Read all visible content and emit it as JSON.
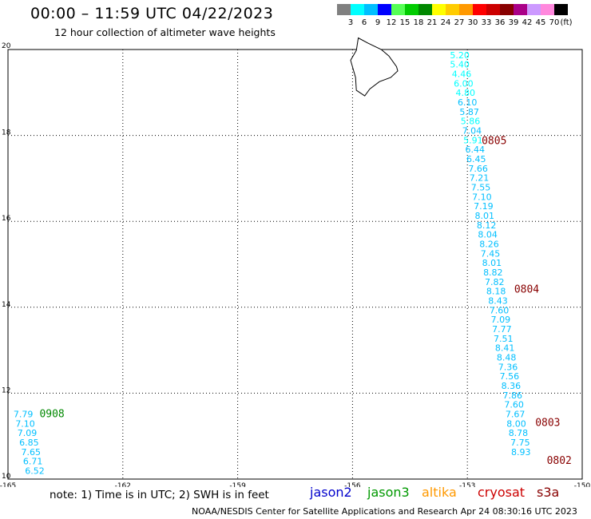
{
  "header": {
    "title": "00:00 – 11:59 UTC 04/22/2023",
    "subtitle": "12 hour collection of altimeter wave heights"
  },
  "colorbar": {
    "colors": [
      "#808080",
      "#00ffff",
      "#00bfff",
      "#0000ff",
      "#55ff55",
      "#00cc00",
      "#008800",
      "#ffff00",
      "#ffcc00",
      "#ff9900",
      "#ff0000",
      "#cc0000",
      "#880000",
      "#aa0088",
      "#cc99ff",
      "#ff88dd",
      "#000000"
    ],
    "labels": [
      "3",
      "6",
      "9",
      "12",
      "15",
      "18",
      "21",
      "24",
      "27",
      "30",
      "33",
      "36",
      "39",
      "42",
      "45",
      "70",
      "(ft)"
    ]
  },
  "footer": {
    "note": "note: 1) Time is in UTC; 2) SWH is in feet",
    "satellites": [
      {
        "name": "jason2",
        "color": "#0000cc"
      },
      {
        "name": "jason3",
        "color": "#009900"
      },
      {
        "name": "altika",
        "color": "#ff9900"
      },
      {
        "name": "cryosat",
        "color": "#cc0000"
      },
      {
        "name": "s3a",
        "color": "#880000"
      }
    ],
    "credit": "NOAA/NESDIS Center for Satellite Applications and Research    Apr 24 08:30:16 UTC 2023"
  },
  "chart_data": {
    "type": "scatter",
    "title": "00:00 – 11:59 UTC 04/22/2023",
    "subtitle": "12 hour collection of altimeter wave heights",
    "xlabel": "",
    "ylabel": "",
    "xlim": [
      -165,
      -150
    ],
    "ylim": [
      10,
      20
    ],
    "x_ticks": [
      "-165",
      "-162",
      "-159",
      "-156",
      "-153",
      "-150"
    ],
    "y_ticks": [
      "10",
      "12",
      "14",
      "16",
      "18",
      "20"
    ],
    "grid": true,
    "units": "ft",
    "tracks": [
      {
        "satellite": "jason2",
        "color": "#00bfff",
        "points": [
          {
            "lon": -153.2,
            "lat": 19.8,
            "swh": "5.20",
            "color": "#00ffff"
          },
          {
            "lon": -153.2,
            "lat": 19.58,
            "swh": "5.40",
            "color": "#00ffff"
          },
          {
            "lon": -153.15,
            "lat": 19.36,
            "swh": "4.46",
            "color": "#00ffff"
          },
          {
            "lon": -153.1,
            "lat": 19.14,
            "swh": "6.00",
            "color": "#00ffff"
          },
          {
            "lon": -153.05,
            "lat": 18.92,
            "swh": "4.80",
            "color": "#00ffff"
          },
          {
            "lon": -153.0,
            "lat": 18.7,
            "swh": "6.10",
            "color": "#00bfff"
          },
          {
            "lon": -152.95,
            "lat": 18.48,
            "swh": "5.87",
            "color": "#00bfff"
          },
          {
            "lon": -152.92,
            "lat": 18.26,
            "swh": "5.86",
            "color": "#00ffff"
          },
          {
            "lon": -152.88,
            "lat": 18.04,
            "swh": "7.04",
            "color": "#00bfff"
          },
          {
            "lon": -152.85,
            "lat": 17.82,
            "swh": "5.91",
            "color": "#00ffff"
          },
          {
            "lon": -152.8,
            "lat": 17.6,
            "swh": "6.44",
            "color": "#00bfff"
          },
          {
            "lon": -152.77,
            "lat": 17.38,
            "swh": "6.45",
            "color": "#00bfff"
          },
          {
            "lon": -152.72,
            "lat": 17.16,
            "swh": "7.66",
            "color": "#00bfff"
          },
          {
            "lon": -152.69,
            "lat": 16.94,
            "swh": "7.21",
            "color": "#00bfff"
          },
          {
            "lon": -152.65,
            "lat": 16.72,
            "swh": "7.55",
            "color": "#00bfff"
          },
          {
            "lon": -152.62,
            "lat": 16.5,
            "swh": "7.10",
            "color": "#00bfff"
          },
          {
            "lon": -152.58,
            "lat": 16.28,
            "swh": "7.19",
            "color": "#00bfff"
          },
          {
            "lon": -152.55,
            "lat": 16.06,
            "swh": "8.01",
            "color": "#00bfff"
          },
          {
            "lon": -152.5,
            "lat": 15.84,
            "swh": "8.12",
            "color": "#00bfff"
          },
          {
            "lon": -152.47,
            "lat": 15.62,
            "swh": "8.04",
            "color": "#00bfff"
          },
          {
            "lon": -152.43,
            "lat": 15.4,
            "swh": "8.26",
            "color": "#00bfff"
          },
          {
            "lon": -152.4,
            "lat": 15.18,
            "swh": "7.45",
            "color": "#00bfff"
          },
          {
            "lon": -152.36,
            "lat": 14.96,
            "swh": "8.01",
            "color": "#00bfff"
          },
          {
            "lon": -152.33,
            "lat": 14.74,
            "swh": "8.82",
            "color": "#00bfff"
          },
          {
            "lon": -152.29,
            "lat": 14.52,
            "swh": "7.82",
            "color": "#00bfff"
          },
          {
            "lon": -152.25,
            "lat": 14.3,
            "swh": "8.18",
            "color": "#00bfff"
          },
          {
            "lon": -152.2,
            "lat": 14.08,
            "swh": "8.43",
            "color": "#00bfff"
          },
          {
            "lon": -152.17,
            "lat": 13.86,
            "swh": "7.60",
            "color": "#00bfff"
          },
          {
            "lon": -152.13,
            "lat": 13.64,
            "swh": "7.09",
            "color": "#00bfff"
          },
          {
            "lon": -152.1,
            "lat": 13.42,
            "swh": "7.77",
            "color": "#00bfff"
          },
          {
            "lon": -152.06,
            "lat": 13.2,
            "swh": "7.51",
            "color": "#00bfff"
          },
          {
            "lon": -152.02,
            "lat": 12.98,
            "swh": "8.41",
            "color": "#00bfff"
          },
          {
            "lon": -151.98,
            "lat": 12.76,
            "swh": "8.48",
            "color": "#00bfff"
          },
          {
            "lon": -151.94,
            "lat": 12.54,
            "swh": "7.36",
            "color": "#00bfff"
          },
          {
            "lon": -151.9,
            "lat": 12.32,
            "swh": "7.56",
            "color": "#00bfff"
          },
          {
            "lon": -151.86,
            "lat": 12.1,
            "swh": "8.36",
            "color": "#00bfff"
          },
          {
            "lon": -151.82,
            "lat": 11.88,
            "swh": "7.86",
            "color": "#00bfff"
          },
          {
            "lon": -151.78,
            "lat": 11.66,
            "swh": "7.60",
            "color": "#00bfff"
          },
          {
            "lon": -151.75,
            "lat": 11.44,
            "swh": "7.67",
            "color": "#00bfff"
          },
          {
            "lon": -151.72,
            "lat": 11.22,
            "swh": "8.00",
            "color": "#00bfff"
          },
          {
            "lon": -151.67,
            "lat": 11.0,
            "swh": "8.78",
            "color": "#00bfff"
          },
          {
            "lon": -151.62,
            "lat": 10.78,
            "swh": "7.75",
            "color": "#00bfff"
          },
          {
            "lon": -151.6,
            "lat": 10.56,
            "swh": "8.93",
            "color": "#00bfff"
          }
        ]
      },
      {
        "satellite": "jason3",
        "color": "#00bfff",
        "points": [
          {
            "lon": -164.6,
            "lat": 11.44,
            "swh": "7.79",
            "color": "#00bfff"
          },
          {
            "lon": -164.55,
            "lat": 11.22,
            "swh": "7.10",
            "color": "#00bfff"
          },
          {
            "lon": -164.5,
            "lat": 11.0,
            "swh": "7.09",
            "color": "#00bfff"
          },
          {
            "lon": -164.45,
            "lat": 10.78,
            "swh": "6.85",
            "color": "#00bfff"
          },
          {
            "lon": -164.4,
            "lat": 10.56,
            "swh": "7.65",
            "color": "#00bfff"
          },
          {
            "lon": -164.35,
            "lat": 10.34,
            "swh": "6.71",
            "color": "#00bfff"
          },
          {
            "lon": -164.3,
            "lat": 10.12,
            "swh": "6.52",
            "color": "#00bfff"
          }
        ]
      }
    ],
    "time_labels": [
      {
        "text": "0805",
        "lon": -152.3,
        "lat": 17.8,
        "color": "#880000"
      },
      {
        "text": "0804",
        "lon": -151.45,
        "lat": 14.34,
        "color": "#880000"
      },
      {
        "text": "0803",
        "lon": -150.9,
        "lat": 11.24,
        "color": "#880000"
      },
      {
        "text": "0802",
        "lon": -150.6,
        "lat": 10.35,
        "color": "#880000"
      },
      {
        "text": "0908",
        "lon": -163.85,
        "lat": 11.44,
        "color": "#008800"
      }
    ]
  }
}
